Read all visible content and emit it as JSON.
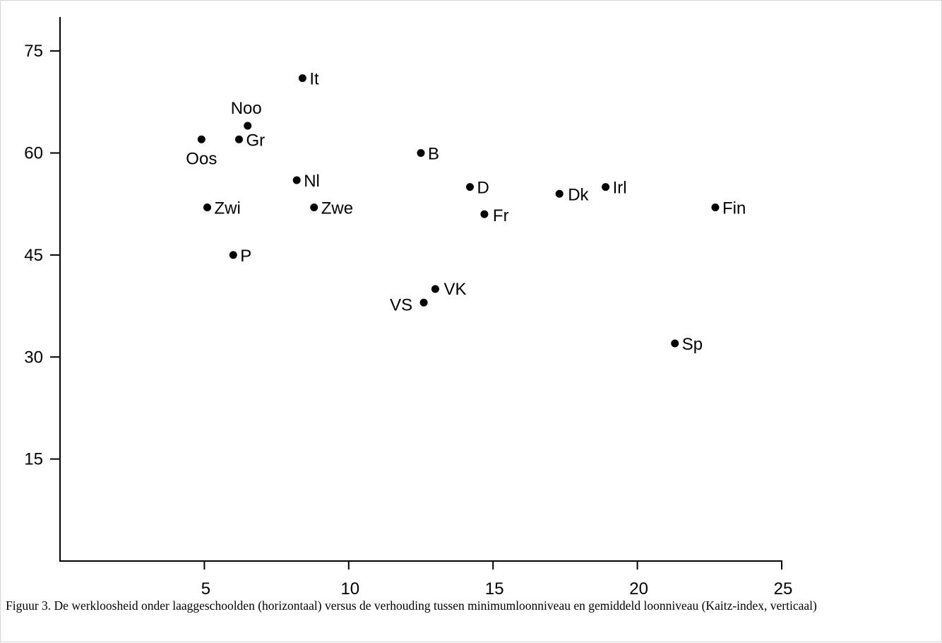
{
  "chart_data": {
    "type": "scatter",
    "title": "",
    "xlabel": "",
    "ylabel": "",
    "xlim": [
      0,
      25
    ],
    "ylim": [
      0,
      80
    ],
    "x_ticks": [
      5,
      10,
      15,
      20,
      25
    ],
    "y_ticks": [
      15,
      30,
      45,
      60,
      75
    ],
    "grid": false,
    "points": [
      {
        "label": "It",
        "x": 8.4,
        "y": 71
      },
      {
        "label": "Noo",
        "x": 6.5,
        "y": 64
      },
      {
        "label": "Gr",
        "x": 6.2,
        "y": 62
      },
      {
        "label": "Oos",
        "x": 4.9,
        "y": 62
      },
      {
        "label": "B",
        "x": 12.5,
        "y": 60
      },
      {
        "label": "Nl",
        "x": 8.2,
        "y": 56
      },
      {
        "label": "D",
        "x": 14.2,
        "y": 55
      },
      {
        "label": "Irl",
        "x": 18.9,
        "y": 55
      },
      {
        "label": "Dk",
        "x": 17.3,
        "y": 54
      },
      {
        "label": "Zwi",
        "x": 5.1,
        "y": 52
      },
      {
        "label": "Zwe",
        "x": 8.8,
        "y": 52
      },
      {
        "label": "Fin",
        "x": 22.7,
        "y": 52
      },
      {
        "label": "Fr",
        "x": 14.7,
        "y": 51
      },
      {
        "label": "P",
        "x": 6.0,
        "y": 45
      },
      {
        "label": "VK",
        "x": 13.0,
        "y": 40
      },
      {
        "label": "VS",
        "x": 12.6,
        "y": 38
      },
      {
        "label": "Sp",
        "x": 21.3,
        "y": 32
      }
    ]
  },
  "caption": "Figuur 3. De werkloosheid onder laaggeschoolden (horizontaal) versus de verhouding tussen minimumloonniveau en gemiddeld loonniveau (Kaitz-index, verticaal)"
}
